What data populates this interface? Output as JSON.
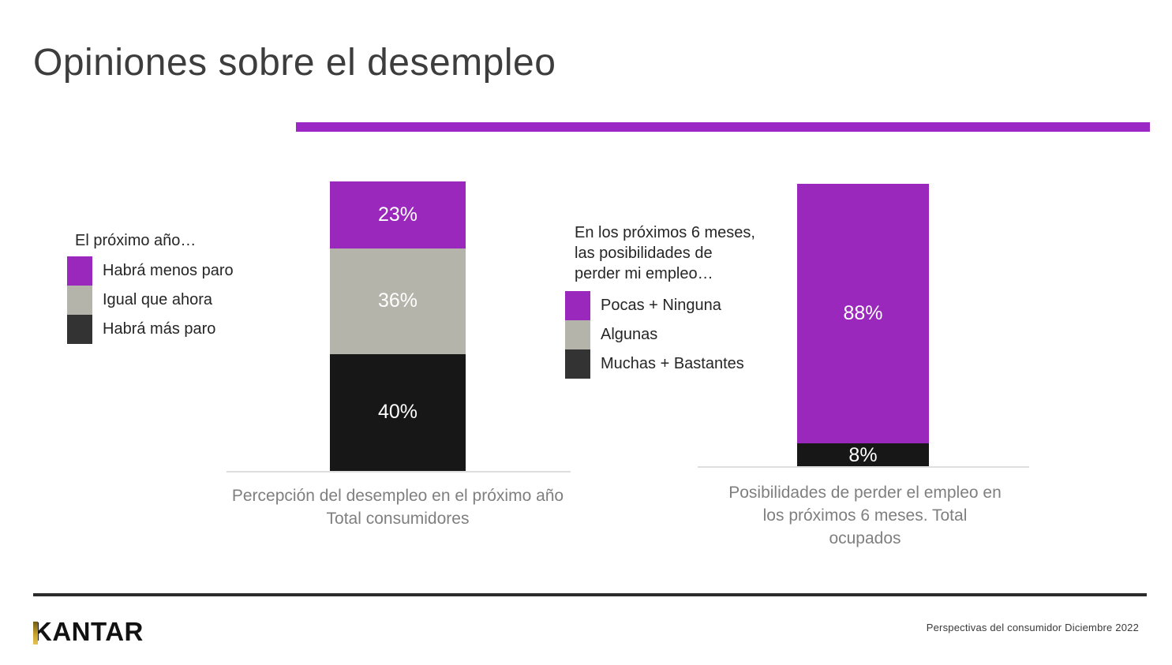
{
  "title": "Opiniones sobre el desempleo",
  "colors": {
    "purple": "#9b28bc",
    "gray": "#b5b4ab",
    "black": "#171717",
    "charcoal": "#333333",
    "divider": "#9b28c4",
    "gold": "#c9a22c"
  },
  "chart_data": [
    {
      "type": "bar",
      "stacked": true,
      "unit": "%",
      "legend_title": "El próximo año…",
      "legend_items": [
        {
          "name": "Habrá menos paro",
          "color": "purple"
        },
        {
          "name": "Igual que ahora",
          "color": "gray"
        },
        {
          "name": "Habrá más paro",
          "color": "charcoal"
        }
      ],
      "segments": [
        {
          "name": "Habrá menos paro",
          "value": 23,
          "label": "23%",
          "color": "purple"
        },
        {
          "name": "Igual que ahora",
          "value": 36,
          "label": "36%",
          "color": "gray"
        },
        {
          "name": "Habrá más paro",
          "value": 40,
          "label": "40%",
          "color": "black"
        }
      ],
      "caption_lines": [
        "Percepción del desempleo en el próximo año",
        "Total consumidores"
      ]
    },
    {
      "type": "bar",
      "stacked": true,
      "unit": "%",
      "legend_title_lines": [
        "En los próximos 6 meses,",
        "las posibilidades de",
        "perder mi empleo…"
      ],
      "legend_items": [
        {
          "name": "Pocas + Ninguna",
          "color": "purple"
        },
        {
          "name": "Algunas",
          "color": "gray"
        },
        {
          "name": "Muchas + Bastantes",
          "color": "charcoal"
        }
      ],
      "segments": [
        {
          "name": "Pocas + Ninguna",
          "value": 88,
          "label": "88%",
          "color": "purple"
        },
        {
          "name": "Muchas + Bastantes",
          "value": 8,
          "label": "8%",
          "color": "black"
        }
      ],
      "caption_lines": [
        "Posibilidades de perder el empleo en",
        "los próximos 6 meses. Total",
        "ocupados"
      ]
    }
  ],
  "footer": {
    "logo": "KANTAR",
    "credit": "Perspectivas del consumidor Diciembre 2022"
  }
}
